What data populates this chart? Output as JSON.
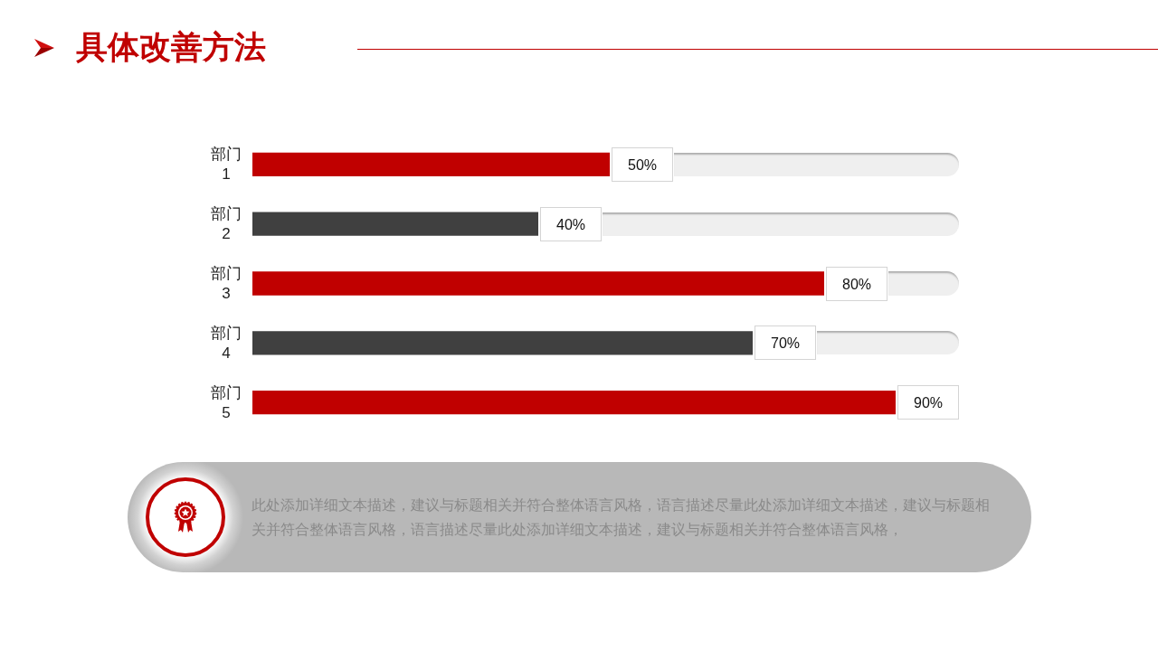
{
  "chart_data": {
    "type": "bar",
    "title": "具体改善方法",
    "orientation": "horizontal",
    "categories": [
      "部门\n1",
      "部门\n2",
      "部门\n3",
      "部门\n4",
      "部门\n5"
    ],
    "series": [
      {
        "colors": [
          "#c00000",
          "#404040",
          "#c00000",
          "#404040",
          "#c00000"
        ],
        "values": [
          50,
          40,
          80,
          70,
          90
        ],
        "value_labels": [
          "50%",
          "40%",
          "80%",
          "70%",
          "90%"
        ]
      }
    ],
    "tick_labels": "y",
    "annotations": [
      "此处添加详细文本描述，建议与标题相关并符合整体语言风格，语言描述尽量此处添加详细文本描述，建议与标题相关并符合整体语言风格，语言描述尽量此处添加详细文本描述，建议与标题相关并符合整体语言风格，"
    ]
  }
}
